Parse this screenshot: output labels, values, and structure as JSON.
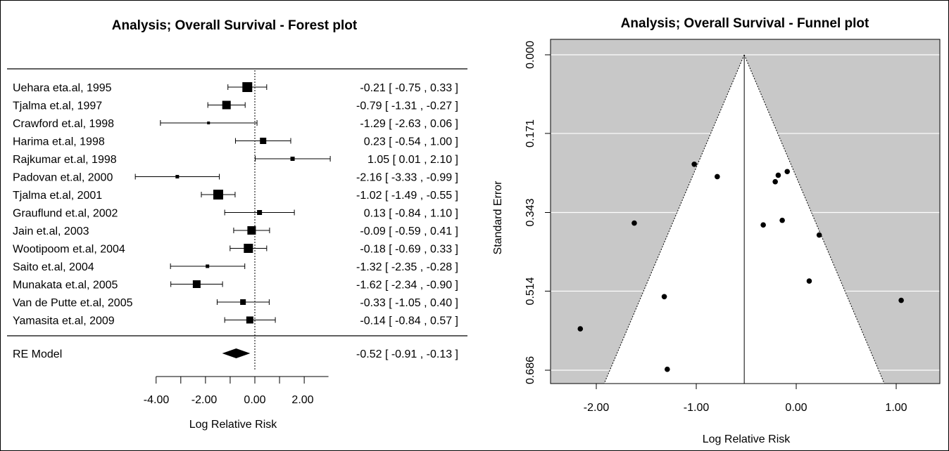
{
  "chart_data": [
    {
      "type": "forest",
      "title": "Analysis; Overall Survival - Forest plot",
      "xlabel": "Log Relative Risk",
      "xlim": [
        -4,
        3
      ],
      "xticks": [
        "-4.00",
        "-2.00",
        "0.00",
        "2.00"
      ],
      "studies": [
        {
          "name": "Uehara eta.al, 1995",
          "est": -0.21,
          "lo": -0.75,
          "hi": 0.33,
          "text": "-0.21 [ -0.75 ,  0.33 ]",
          "w": 14
        },
        {
          "name": "Tjalma et.al, 1997",
          "est": -0.79,
          "lo": -1.31,
          "hi": -0.27,
          "text": "-0.79 [ -1.31 , -0.27 ]",
          "w": 12
        },
        {
          "name": "Crawford et.al, 1998",
          "est": -1.29,
          "lo": -2.63,
          "hi": 0.06,
          "text": "-1.29 [ -2.63 ,  0.06 ]",
          "w": 4
        },
        {
          "name": "Harima et.al, 1998",
          "est": 0.23,
          "lo": -0.54,
          "hi": 1.0,
          "text": "0.23 [ -0.54 ,  1.00 ]",
          "w": 9
        },
        {
          "name": "Rajkumar et.al, 1998",
          "est": 1.05,
          "lo": 0.01,
          "hi": 2.1,
          "text": "1.05 [  0.01 ,  2.10 ]",
          "w": 6
        },
        {
          "name": "Padovan et.al, 2000",
          "est": -2.16,
          "lo": -3.33,
          "hi": -0.99,
          "text": "-2.16 [ -3.33 , -0.99 ]",
          "w": 5
        },
        {
          "name": "Tjalma et.al, 2001",
          "est": -1.02,
          "lo": -1.49,
          "hi": -0.55,
          "text": "-1.02 [ -1.49 , -0.55 ]",
          "w": 14
        },
        {
          "name": "Grauflund et.al, 2002",
          "est": 0.13,
          "lo": -0.84,
          "hi": 1.1,
          "text": "0.13 [ -0.84 ,  1.10 ]",
          "w": 7
        },
        {
          "name": "Jain et.al, 2003",
          "est": -0.09,
          "lo": -0.59,
          "hi": 0.41,
          "text": "-0.09 [ -0.59 ,  0.41 ]",
          "w": 12
        },
        {
          "name": "Wootipoom et.al, 2004",
          "est": -0.18,
          "lo": -0.69,
          "hi": 0.33,
          "text": "-0.18 [ -0.69 ,  0.33 ]",
          "w": 13
        },
        {
          "name": "Saito et.al, 2004",
          "est": -1.32,
          "lo": -2.35,
          "hi": -0.28,
          "text": "-1.32 [ -2.35 , -0.28 ]",
          "w": 5
        },
        {
          "name": "Munakata et.al, 2005",
          "est": -1.62,
          "lo": -2.34,
          "hi": -0.9,
          "text": "-1.62 [ -2.34 , -0.90 ]",
          "w": 11
        },
        {
          "name": "Van de Putte et.al, 2005",
          "est": -0.33,
          "lo": -1.05,
          "hi": 0.4,
          "text": "-0.33 [ -1.05 ,  0.40 ]",
          "w": 8
        },
        {
          "name": "Yamasita et.al, 2009",
          "est": -0.14,
          "lo": -0.84,
          "hi": 0.57,
          "text": "-0.14 [ -0.84 ,  0.57 ]",
          "w": 10
        }
      ],
      "summary": {
        "name": "RE Model",
        "est": -0.52,
        "lo": -0.91,
        "hi": -0.13,
        "text": "-0.52 [ -0.91 , -0.13 ]"
      }
    },
    {
      "type": "scatter",
      "subtype": "funnel",
      "title": "Analysis; Overall Survival - Funnel plot",
      "xlabel": "Log Relative Risk",
      "ylabel": "Standard Error",
      "xlim": [
        -2.6,
        1.6
      ],
      "ylim": [
        0.686,
        0.0
      ],
      "xticks": [
        "-2.00",
        "-1.00",
        "0.00",
        "1.00"
      ],
      "yticks": [
        "0.000",
        "0.171",
        "0.343",
        "0.514",
        "0.686"
      ],
      "center": -0.52,
      "points": [
        {
          "x": -0.21,
          "y": 0.276
        },
        {
          "x": -0.79,
          "y": 0.265
        },
        {
          "x": -1.29,
          "y": 0.684
        },
        {
          "x": 0.23,
          "y": 0.392
        },
        {
          "x": 1.05,
          "y": 0.534
        },
        {
          "x": -2.16,
          "y": 0.596
        },
        {
          "x": -1.02,
          "y": 0.238
        },
        {
          "x": 0.13,
          "y": 0.492
        },
        {
          "x": -0.09,
          "y": 0.254
        },
        {
          "x": -0.18,
          "y": 0.262
        },
        {
          "x": -1.32,
          "y": 0.526
        },
        {
          "x": -1.62,
          "y": 0.366
        },
        {
          "x": -0.33,
          "y": 0.37
        },
        {
          "x": -0.14,
          "y": 0.36
        }
      ],
      "colors": {
        "background": "#c8c8c8",
        "funnel": "#ffffff",
        "grid": "#ffffff"
      }
    }
  ]
}
